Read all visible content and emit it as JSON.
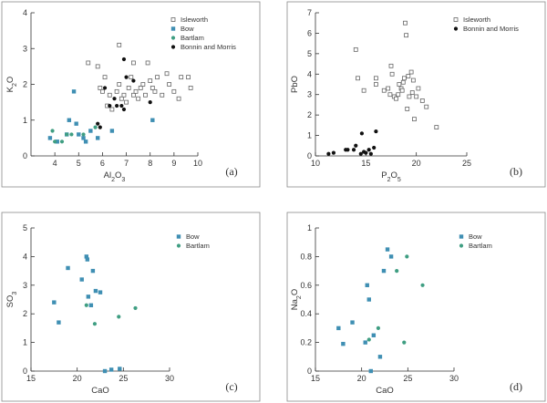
{
  "figure": {
    "marker_colors": {
      "Isleworth": "#666666",
      "Bow": "#3f8fb3",
      "Bartlam": "#3f9e82",
      "Bonnin and Morris": "#111111"
    }
  },
  "chart_data": [
    {
      "type": "scatter",
      "panel_label": "(a)",
      "title": "",
      "xlabel": "Al2O3",
      "ylabel": "K2O",
      "xlim": [
        3,
        10
      ],
      "ylim": [
        0,
        4
      ],
      "xticks": [
        4,
        5,
        6,
        7,
        8,
        9,
        10
      ],
      "yticks": [
        0,
        1,
        2,
        3,
        4
      ],
      "grid": false,
      "legend": "top-right",
      "series": [
        {
          "name": "Isleworth",
          "marker": "open-square",
          "points": [
            [
              5.4,
              2.6
            ],
            [
              5.8,
              2.5
            ],
            [
              6.7,
              3.1
            ],
            [
              7.3,
              2.6
            ],
            [
              5.9,
              1.9
            ],
            [
              6.0,
              1.8
            ],
            [
              6.1,
              2.2
            ],
            [
              6.2,
              1.4
            ],
            [
              6.3,
              1.7
            ],
            [
              6.4,
              1.3
            ],
            [
              6.6,
              1.8
            ],
            [
              6.7,
              2.0
            ],
            [
              6.8,
              1.6
            ],
            [
              6.9,
              1.7
            ],
            [
              7.0,
              1.5
            ],
            [
              7.1,
              1.9
            ],
            [
              7.2,
              2.2
            ],
            [
              7.3,
              1.7
            ],
            [
              7.4,
              1.8
            ],
            [
              7.5,
              1.6
            ],
            [
              7.6,
              1.9
            ],
            [
              7.7,
              2.0
            ],
            [
              7.8,
              1.7
            ],
            [
              7.9,
              2.6
            ],
            [
              8.0,
              2.1
            ],
            [
              8.1,
              1.9
            ],
            [
              8.2,
              1.8
            ],
            [
              8.3,
              2.2
            ],
            [
              8.5,
              1.7
            ],
            [
              8.7,
              2.3
            ],
            [
              8.8,
              2.0
            ],
            [
              9.0,
              1.8
            ],
            [
              9.2,
              1.6
            ],
            [
              9.3,
              2.2
            ],
            [
              9.6,
              2.2
            ],
            [
              9.7,
              1.9
            ]
          ]
        },
        {
          "name": "Bow",
          "marker": "filled-square",
          "points": [
            [
              3.8,
              0.5
            ],
            [
              4.1,
              0.4
            ],
            [
              4.5,
              0.6
            ],
            [
              4.6,
              1.0
            ],
            [
              4.8,
              1.8
            ],
            [
              4.9,
              0.9
            ],
            [
              5.0,
              0.6
            ],
            [
              5.2,
              0.5
            ],
            [
              5.3,
              0.4
            ],
            [
              5.5,
              0.7
            ],
            [
              5.8,
              0.5
            ],
            [
              6.4,
              0.7
            ],
            [
              8.1,
              1.0
            ]
          ]
        },
        {
          "name": "Bartlam",
          "marker": "filled-circle",
          "points": [
            [
              3.9,
              0.7
            ],
            [
              4.0,
              0.4
            ],
            [
              4.3,
              0.4
            ],
            [
              4.5,
              0.6
            ],
            [
              4.7,
              0.6
            ],
            [
              5.2,
              0.6
            ],
            [
              5.7,
              0.8
            ]
          ]
        },
        {
          "name": "Bonnin and Morris",
          "marker": "filled-circle",
          "points": [
            [
              5.8,
              0.9
            ],
            [
              5.9,
              0.8
            ],
            [
              6.1,
              1.9
            ],
            [
              6.3,
              1.4
            ],
            [
              6.5,
              1.6
            ],
            [
              6.6,
              1.4
            ],
            [
              6.8,
              1.4
            ],
            [
              6.9,
              1.3
            ],
            [
              6.9,
              2.7
            ],
            [
              7.0,
              2.2
            ],
            [
              7.3,
              2.1
            ],
            [
              8.0,
              1.5
            ]
          ]
        }
      ]
    },
    {
      "type": "scatter",
      "panel_label": "(b)",
      "title": "",
      "xlabel": "P2O5",
      "ylabel": "PbO",
      "xlim": [
        10,
        25
      ],
      "ylim": [
        0,
        7
      ],
      "xticks": [
        10,
        15,
        20,
        25
      ],
      "yticks": [
        0,
        1,
        2,
        3,
        4,
        5,
        6,
        7
      ],
      "grid": false,
      "legend": "top-right",
      "series": [
        {
          "name": "Isleworth",
          "marker": "open-square",
          "points": [
            [
              14.0,
              5.2
            ],
            [
              14.2,
              3.8
            ],
            [
              14.8,
              3.2
            ],
            [
              16.0,
              3.5
            ],
            [
              16.0,
              3.8
            ],
            [
              16.8,
              3.2
            ],
            [
              17.2,
              3.3
            ],
            [
              17.4,
              3.0
            ],
            [
              17.5,
              4.4
            ],
            [
              17.6,
              4.0
            ],
            [
              17.8,
              2.9
            ],
            [
              18.0,
              2.8
            ],
            [
              18.2,
              3.0
            ],
            [
              18.3,
              3.5
            ],
            [
              18.5,
              3.3
            ],
            [
              18.6,
              3.2
            ],
            [
              18.7,
              3.6
            ],
            [
              18.8,
              3.8
            ],
            [
              18.9,
              6.5
            ],
            [
              19.0,
              5.9
            ],
            [
              19.1,
              2.3
            ],
            [
              19.2,
              3.9
            ],
            [
              19.3,
              2.9
            ],
            [
              19.5,
              4.1
            ],
            [
              19.6,
              3.1
            ],
            [
              19.7,
              3.7
            ],
            [
              20.0,
              2.9
            ],
            [
              20.2,
              3.3
            ],
            [
              20.6,
              2.7
            ],
            [
              21.0,
              2.4
            ],
            [
              22.0,
              1.4
            ],
            [
              19.8,
              1.8
            ]
          ]
        },
        {
          "name": "Bonnin and Morris",
          "marker": "filled-circle",
          "points": [
            [
              11.3,
              0.1
            ],
            [
              11.8,
              0.15
            ],
            [
              13.0,
              0.3
            ],
            [
              13.2,
              0.3
            ],
            [
              13.8,
              0.3
            ],
            [
              14.0,
              0.5
            ],
            [
              14.5,
              0.1
            ],
            [
              14.6,
              1.1
            ],
            [
              14.8,
              0.2
            ],
            [
              15.0,
              0.15
            ],
            [
              15.3,
              0.3
            ],
            [
              15.5,
              0.1
            ],
            [
              15.8,
              0.4
            ],
            [
              16.0,
              1.2
            ]
          ]
        }
      ]
    },
    {
      "type": "scatter",
      "panel_label": "(c)",
      "title": "",
      "xlabel": "CaO",
      "ylabel": "SO3",
      "xlim": [
        15,
        30
      ],
      "ylim": [
        0,
        5
      ],
      "xticks": [
        15,
        20,
        25,
        30
      ],
      "yticks": [
        0,
        1,
        2,
        3,
        4,
        5
      ],
      "grid": false,
      "legend": "top-right",
      "series": [
        {
          "name": "Bow",
          "marker": "filled-square",
          "points": [
            [
              17.5,
              2.4
            ],
            [
              18.0,
              1.7
            ],
            [
              19.0,
              3.6
            ],
            [
              20.5,
              3.2
            ],
            [
              21.0,
              4.0
            ],
            [
              21.1,
              3.9
            ],
            [
              21.2,
              2.6
            ],
            [
              21.5,
              2.3
            ],
            [
              21.7,
              3.5
            ],
            [
              22.0,
              2.8
            ],
            [
              22.5,
              2.75
            ],
            [
              23.0,
              0.0
            ],
            [
              23.7,
              0.05
            ],
            [
              24.6,
              0.08
            ]
          ]
        },
        {
          "name": "Bartlam",
          "marker": "filled-circle",
          "points": [
            [
              21.0,
              2.3
            ],
            [
              21.9,
              1.65
            ],
            [
              24.5,
              1.9
            ],
            [
              26.3,
              2.2
            ]
          ]
        }
      ]
    },
    {
      "type": "scatter",
      "panel_label": "(d)",
      "title": "",
      "xlabel": "CaO",
      "ylabel": "Na2O",
      "xlim": [
        15,
        30
      ],
      "ylim": [
        0,
        1.0
      ],
      "xticks": [
        15,
        20,
        25,
        30
      ],
      "yticks": [
        0,
        0.2,
        0.4,
        0.6,
        0.8,
        1.0
      ],
      "grid": false,
      "legend": "top-right",
      "series": [
        {
          "name": "Bow",
          "marker": "filled-square",
          "points": [
            [
              17.5,
              0.3
            ],
            [
              18.0,
              0.19
            ],
            [
              19.0,
              0.34
            ],
            [
              20.4,
              0.2
            ],
            [
              20.6,
              0.6
            ],
            [
              20.8,
              0.5
            ],
            [
              21.0,
              0.0
            ],
            [
              21.3,
              0.25
            ],
            [
              22.0,
              0.1
            ],
            [
              22.4,
              0.7
            ],
            [
              22.8,
              0.85
            ],
            [
              23.2,
              0.8
            ]
          ]
        },
        {
          "name": "Bartlam",
          "marker": "filled-circle",
          "points": [
            [
              20.8,
              0.22
            ],
            [
              21.8,
              0.3
            ],
            [
              23.8,
              0.7
            ],
            [
              24.6,
              0.2
            ],
            [
              24.9,
              0.8
            ],
            [
              26.6,
              0.6
            ]
          ]
        }
      ]
    }
  ]
}
